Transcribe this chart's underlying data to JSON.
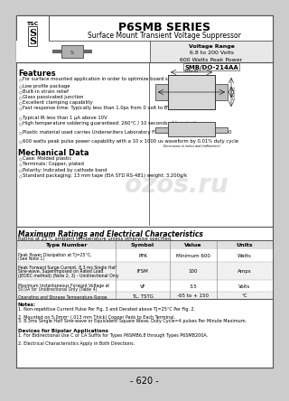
{
  "title": "P6SMB SERIES",
  "subtitle": "Surface Mount Transient Voltage Suppressor",
  "voltage_range_line1": "Voltage Range",
  "voltage_range_line2": "6.8 to 200 Volts",
  "voltage_range_line3": "600 Watts Peak Power",
  "package": "SMB/DO-214AA",
  "features_title": "Features",
  "features": [
    "For surface mounted application in order to optimize board space.",
    "Low profile package",
    "Built-in strain relief",
    "Glass passivated junction",
    "Excellent clamping capability",
    "Fast response time: Typically less than 1.0ps from 0 volt to BV min.",
    "Typical IR less than 1 μA above 10V",
    "High temperature soldering guaranteed: 260°C / 10 seconds at terminals",
    "Plastic material used carries Underwriters Laboratory Flammability Classification 94V-0",
    "600 watts peak pulse power capability with a 10 x 1000 us waveform by 0.01% duty cycle"
  ],
  "features_multiline": [
    false,
    false,
    false,
    false,
    false,
    true,
    false,
    true,
    true,
    true
  ],
  "mech_title": "Mechanical Data",
  "mech": [
    "Case: Molded plastic",
    "Terminals: Copper, plated",
    "Polarity: Indicated by cathode band",
    "Standard packaging: 13 mm tape (EIA STD RS-481) weight: 3.200g/k"
  ],
  "max_ratings_title": "Maximum Ratings and Electrical Characteristics",
  "max_ratings_sub": "Rating at 25°C ambient temperature unless otherwise specified.",
  "table_headers": [
    "Type Number",
    "Symbol",
    "Value",
    "Units"
  ],
  "table_rows": [
    [
      "Peak Power Dissipation at TJ=25°C,\n(See Note 1)",
      "PPK",
      "Minimum 600",
      "Watts"
    ],
    [
      "Peak Forward Surge Current, 8.3 ms Single Half\nSine-wave, Superimposed on Rated Load\n(JEDEC method) (Note 2, 3) - Unidirectional Only",
      "IFSM",
      "100",
      "Amps"
    ],
    [
      "Maximum Instantaneous Forward Voltage at\n50.0A for Unidirectional Only (Table 4)",
      "VF",
      "3.5",
      "Volts"
    ],
    [
      "Operating and Storage Temperature Range",
      "TL, TSTG",
      "-65 to + 150",
      "°C"
    ]
  ],
  "notes_title": "Notes:",
  "notes": [
    "1. Non-repetitive Current Pulse Per Fig. 3 and Derated above TJ=25°C Per Fig. 2.",
    "2. Mounted on 5.0mm² (.013 mm Thick) Copper Pads to Each Terminal.",
    "3. 8.3ms Single Half Sine-wave or Equivalent Square Wave, Duty Cycle=4 pulses Per Minute Maximum."
  ],
  "devices_title": "Devices for Bipolar Applications",
  "devices": [
    "1. For Bidirectional Use C or CA Suffix for Types P6SMB6.8 through Types P6SMB200A.",
    "2. Electrical Characteristics Apply in Both Directions."
  ],
  "page_number": "- 620 -",
  "outer_bg": "#cccccc",
  "inner_bg": "#ffffff",
  "watermark": "ozos.ru"
}
